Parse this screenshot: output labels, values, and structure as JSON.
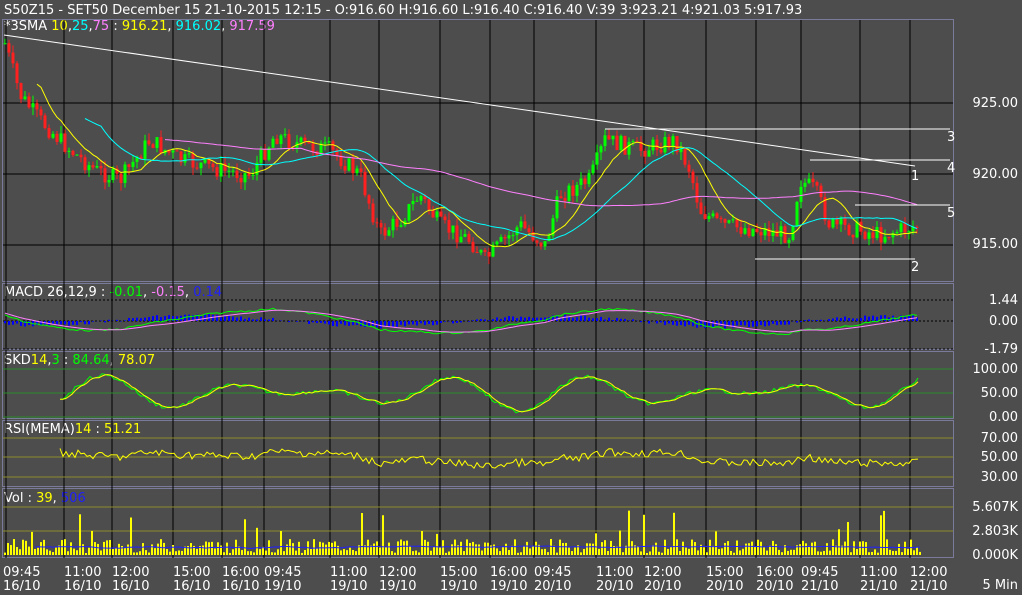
{
  "header": {
    "text": "S50Z15 - SET50 December 15 21-10-2015 12:15 - O:916.60 H:916.60 L:916.40 C:916.40 V:39 3:923.21 4:921.03 5:917.93"
  },
  "price_panel": {
    "label": "*3SMA",
    "p1": "10",
    "p2": "25",
    "p3": "75",
    "sep": " : ",
    "v1": "916.21",
    "v2": "916.02",
    "v3": "917.59",
    "yticks": [
      "925.00",
      "920.00",
      "915.00"
    ],
    "line_labels": [
      "1",
      "2",
      "3",
      "4",
      "5"
    ]
  },
  "macd_panel": {
    "label": "MACD 26,12,9 : ",
    "v1": "-0.01",
    "v2": "-0.15",
    "v3": "0.14",
    "yticks": [
      "1.44",
      "0.00",
      "-1.79"
    ]
  },
  "skd_panel": {
    "label": "SKD",
    "p1": "14",
    "p2": "3",
    "v1": "84.64",
    "v2": "78.07",
    "yticks": [
      "100.00",
      "50.00",
      "0.00"
    ]
  },
  "rsi_panel": {
    "label": "RSI(MEMA)",
    "p1": "14",
    "v1": "51.21",
    "yticks": [
      "70.00",
      "50.00",
      "30.00"
    ]
  },
  "vol_panel": {
    "label": "Vol : ",
    "v1": "39",
    "v2": "506",
    "yticks": [
      "5.607K",
      "2.803K",
      "0.000K"
    ]
  },
  "x_axis": {
    "labels": [
      {
        "t": "09:45",
        "d": "16/10"
      },
      {
        "t": "11:00",
        "d": "16/10"
      },
      {
        "t": "12:00",
        "d": "16/10"
      },
      {
        "t": "15:00",
        "d": "16/10"
      },
      {
        "t": "16:00",
        "d": "16/10"
      },
      {
        "t": "09:45",
        "d": "19/10"
      },
      {
        "t": "11:00",
        "d": "19/10"
      },
      {
        "t": "12:00",
        "d": "19/10"
      },
      {
        "t": "15:00",
        "d": "19/10"
      },
      {
        "t": "16:00",
        "d": "19/10"
      },
      {
        "t": "09:45",
        "d": "20/10"
      },
      {
        "t": "11:00",
        "d": "20/10"
      },
      {
        "t": "12:00",
        "d": "20/10"
      },
      {
        "t": "15:00",
        "d": "20/10"
      },
      {
        "t": "16:00",
        "d": "20/10"
      },
      {
        "t": "09:45",
        "d": "21/10"
      },
      {
        "t": "11:00",
        "d": "21/10"
      },
      {
        "t": "12:00",
        "d": "21/10"
      }
    ],
    "period": "5 Min"
  },
  "colors": {
    "background": "#4d4d4d",
    "up_candle": "#00ff00",
    "down_candle": "#ff2020",
    "sma1": "#ffff00",
    "sma2": "#00ffff",
    "sma3": "#ff80ff",
    "volume": "#ffff00",
    "macd_hist": "#0000ff",
    "grid": "#000000"
  }
}
